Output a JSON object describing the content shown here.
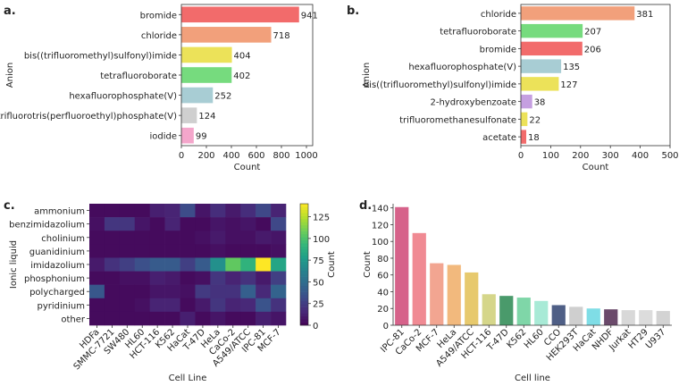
{
  "panels": {
    "a": {
      "label": "a."
    },
    "b": {
      "label": "b."
    },
    "c": {
      "label": "c."
    },
    "d": {
      "label": "d."
    }
  },
  "colors": {
    "bromide": "#f26b6b",
    "chloride": "#f2a07b",
    "bistriflimide": "#ece259",
    "tetrafluoroborate": "#76db7e",
    "hexafluorophosphate": "#a8cdd4",
    "grey": "#cfcfcf",
    "iodide": "#f4a6cb",
    "purple": "#c59fe0",
    "yellow": "#ece259"
  },
  "chart_data": [
    {
      "id": "a",
      "type": "bar",
      "orientation": "horizontal",
      "categories": [
        "bromide",
        "chloride",
        "bis((trifluoromethyl)sulfonyl)imide",
        "tetrafluoroborate",
        "hexafluorophosphate(V)",
        "trifluorotris(perfluoroethyl)phosphate(V)",
        "iodide"
      ],
      "values": [
        941,
        718,
        404,
        402,
        252,
        124,
        99
      ],
      "bar_colors": [
        "#f26b6b",
        "#f2a07b",
        "#ece259",
        "#76db7e",
        "#a8cdd4",
        "#cfcfcf",
        "#f4a6cb"
      ],
      "xlabel": "Count",
      "ylabel": "Anion",
      "xlim": [
        0,
        1050
      ],
      "xticks": [
        0,
        200,
        400,
        600,
        800,
        1000
      ]
    },
    {
      "id": "b",
      "type": "bar",
      "orientation": "horizontal",
      "categories": [
        "chloride",
        "tetrafluoroborate",
        "bromide",
        "hexafluorophosphate(V)",
        "bis((trifluoromethyl)sulfonyl)imide",
        "2-hydroxybenzoate",
        "trifluoromethanesulfonate",
        "acetate"
      ],
      "values": [
        381,
        207,
        206,
        135,
        127,
        38,
        22,
        18
      ],
      "bar_colors": [
        "#f2a07b",
        "#76db7e",
        "#f26b6b",
        "#a8cdd4",
        "#ece259",
        "#c59fe0",
        "#ece259",
        "#f26b6b"
      ],
      "xlabel": "Count",
      "ylabel": "Anion",
      "xlim": [
        0,
        500
      ],
      "xticks": [
        0,
        100,
        200,
        300,
        400,
        500
      ]
    },
    {
      "id": "c",
      "type": "heatmap",
      "rows": [
        "ammonium",
        "benzimidazolium",
        "cholinium",
        "guanidinium",
        "imidazolium",
        "phosphonium",
        "polycharged",
        "pyridinium",
        "other"
      ],
      "columns": [
        "HDFa",
        "SMMC-7721",
        "SW480",
        "HL60",
        "HCT-116",
        "K562",
        "HaCat",
        "T-47D",
        "HeLa",
        "CaCo-2",
        "A549/ATCC",
        "IPC-81",
        "MCF-7"
      ],
      "values": [
        [
          4,
          4,
          4,
          4,
          12,
          14,
          32,
          8,
          18,
          10,
          18,
          30,
          14
        ],
        [
          6,
          22,
          22,
          8,
          4,
          14,
          4,
          4,
          8,
          6,
          8,
          4,
          30
        ],
        [
          4,
          4,
          4,
          4,
          4,
          4,
          4,
          6,
          10,
          6,
          6,
          10,
          8
        ],
        [
          4,
          4,
          4,
          4,
          4,
          4,
          4,
          4,
          6,
          4,
          4,
          4,
          6
        ],
        [
          10,
          20,
          26,
          34,
          40,
          40,
          26,
          40,
          70,
          105,
          90,
          140,
          82
        ],
        [
          4,
          4,
          6,
          6,
          12,
          10,
          4,
          6,
          22,
          14,
          20,
          10,
          26
        ],
        [
          38,
          4,
          4,
          4,
          8,
          8,
          6,
          24,
          20,
          20,
          42,
          16,
          44
        ],
        [
          4,
          4,
          4,
          6,
          14,
          14,
          4,
          10,
          22,
          14,
          16,
          36,
          20
        ],
        [
          4,
          4,
          4,
          4,
          4,
          4,
          12,
          4,
          8,
          4,
          4,
          12,
          8
        ]
      ],
      "xlabel": "Cell Line",
      "ylabel": "Ionic liquid",
      "colorbar_label": "Count",
      "colorbar_range": [
        0,
        140
      ],
      "colorbar_ticks": [
        0,
        25,
        50,
        75,
        100,
        125
      ],
      "colormap": "viridis"
    },
    {
      "id": "d",
      "type": "bar",
      "orientation": "vertical",
      "categories": [
        "IPC-81",
        "CaCo-2",
        "MCF-7",
        "HeLa",
        "A549/ATCC",
        "HCT-116",
        "T-47D",
        "K562",
        "HL60",
        "CCO",
        "HEK293T",
        "HaCat",
        "NHDF",
        "Jurkat",
        "HT29",
        "U937"
      ],
      "values": [
        141,
        110,
        74,
        72,
        63,
        37,
        35,
        33,
        29,
        24,
        22,
        20,
        19,
        18,
        18,
        17
      ],
      "bar_colors": [
        "#d6628a",
        "#f08a93",
        "#f2a591",
        "#f2b97d",
        "#e7c96d",
        "#d5d68a",
        "#4a9a6b",
        "#7fd6a8",
        "#a8ead6",
        "#4f5f86",
        "#cfcfcf",
        "#7fdde6",
        "#6b4a6b",
        "#d8d8d8",
        "#dcdcdc",
        "#d3d3d3"
      ],
      "xlabel": "Cell line",
      "ylabel": "Count",
      "ylim": [
        0,
        145
      ],
      "yticks": [
        0,
        20,
        40,
        60,
        80,
        100,
        120,
        140
      ]
    }
  ]
}
